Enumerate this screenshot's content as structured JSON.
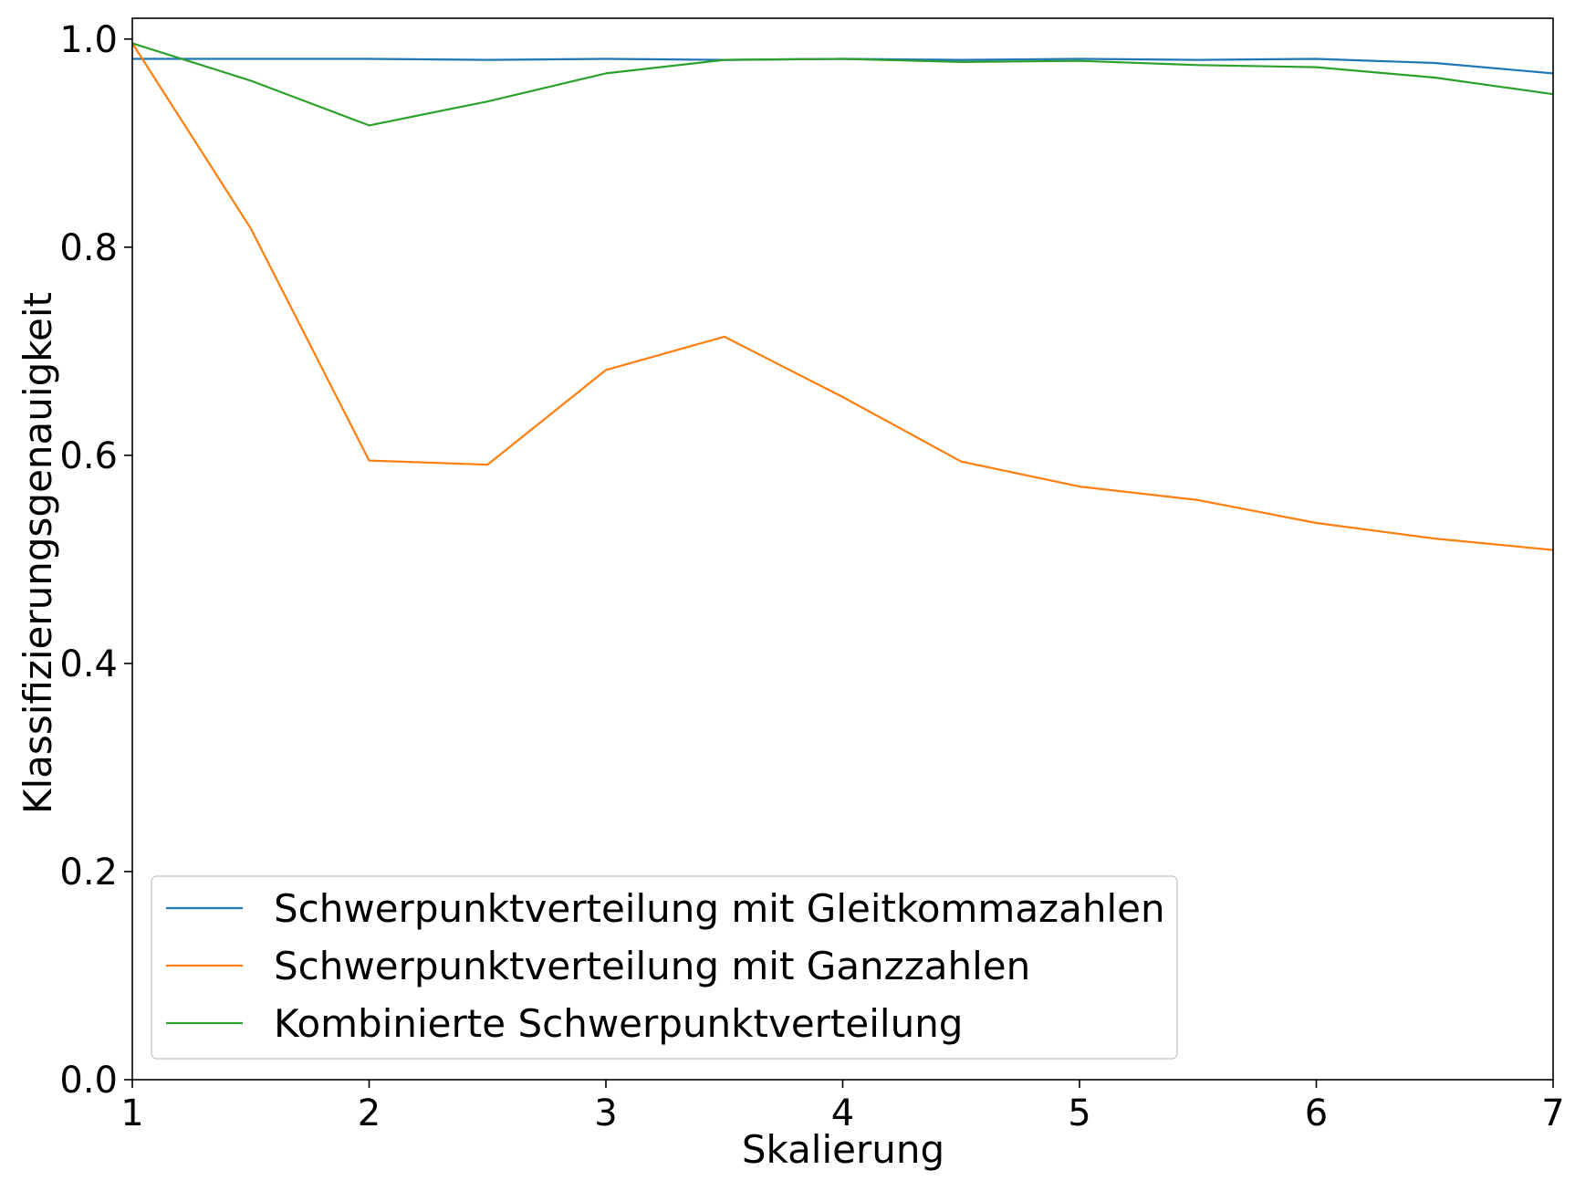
{
  "chart_data": {
    "type": "line",
    "title": "",
    "xlabel": "Skalierung",
    "ylabel": "Klassifizierungsgenauigkeit",
    "xlim": [
      1,
      7
    ],
    "ylim": [
      0.0,
      1.02
    ],
    "grid": false,
    "legend_position": "lower-left",
    "xticks": [
      1,
      2,
      3,
      4,
      5,
      6,
      7
    ],
    "xtick_labels": [
      "1",
      "2",
      "3",
      "4",
      "5",
      "6",
      "7"
    ],
    "yticks": [
      0.0,
      0.2,
      0.4,
      0.6,
      0.8,
      1.0
    ],
    "ytick_labels": [
      "0.0",
      "0.2",
      "0.4",
      "0.6",
      "0.8",
      "1.0"
    ],
    "x": [
      1,
      1.5,
      2,
      2.5,
      3,
      3.5,
      4,
      4.5,
      5,
      5.5,
      6,
      6.5,
      7
    ],
    "series": [
      {
        "name": "Schwerpunktverteilung mit Gleitkommazahlen",
        "color": "#1f77b4",
        "values": [
          0.981,
          0.981,
          0.981,
          0.98,
          0.981,
          0.98,
          0.981,
          0.98,
          0.981,
          0.98,
          0.981,
          0.977,
          0.967
        ]
      },
      {
        "name": "Schwerpunktverteilung mit Ganzzahlen",
        "color": "#ff7f0e",
        "values": [
          0.996,
          0.818,
          0.595,
          0.591,
          0.682,
          0.714,
          0.656,
          0.594,
          0.57,
          0.557,
          0.535,
          0.52,
          0.509
        ]
      },
      {
        "name": "Kombinierte Schwerpunktverteilung",
        "color": "#2ca02c",
        "values": [
          0.996,
          0.96,
          0.917,
          0.94,
          0.967,
          0.98,
          0.981,
          0.978,
          0.979,
          0.975,
          0.973,
          0.963,
          0.947
        ]
      }
    ]
  }
}
